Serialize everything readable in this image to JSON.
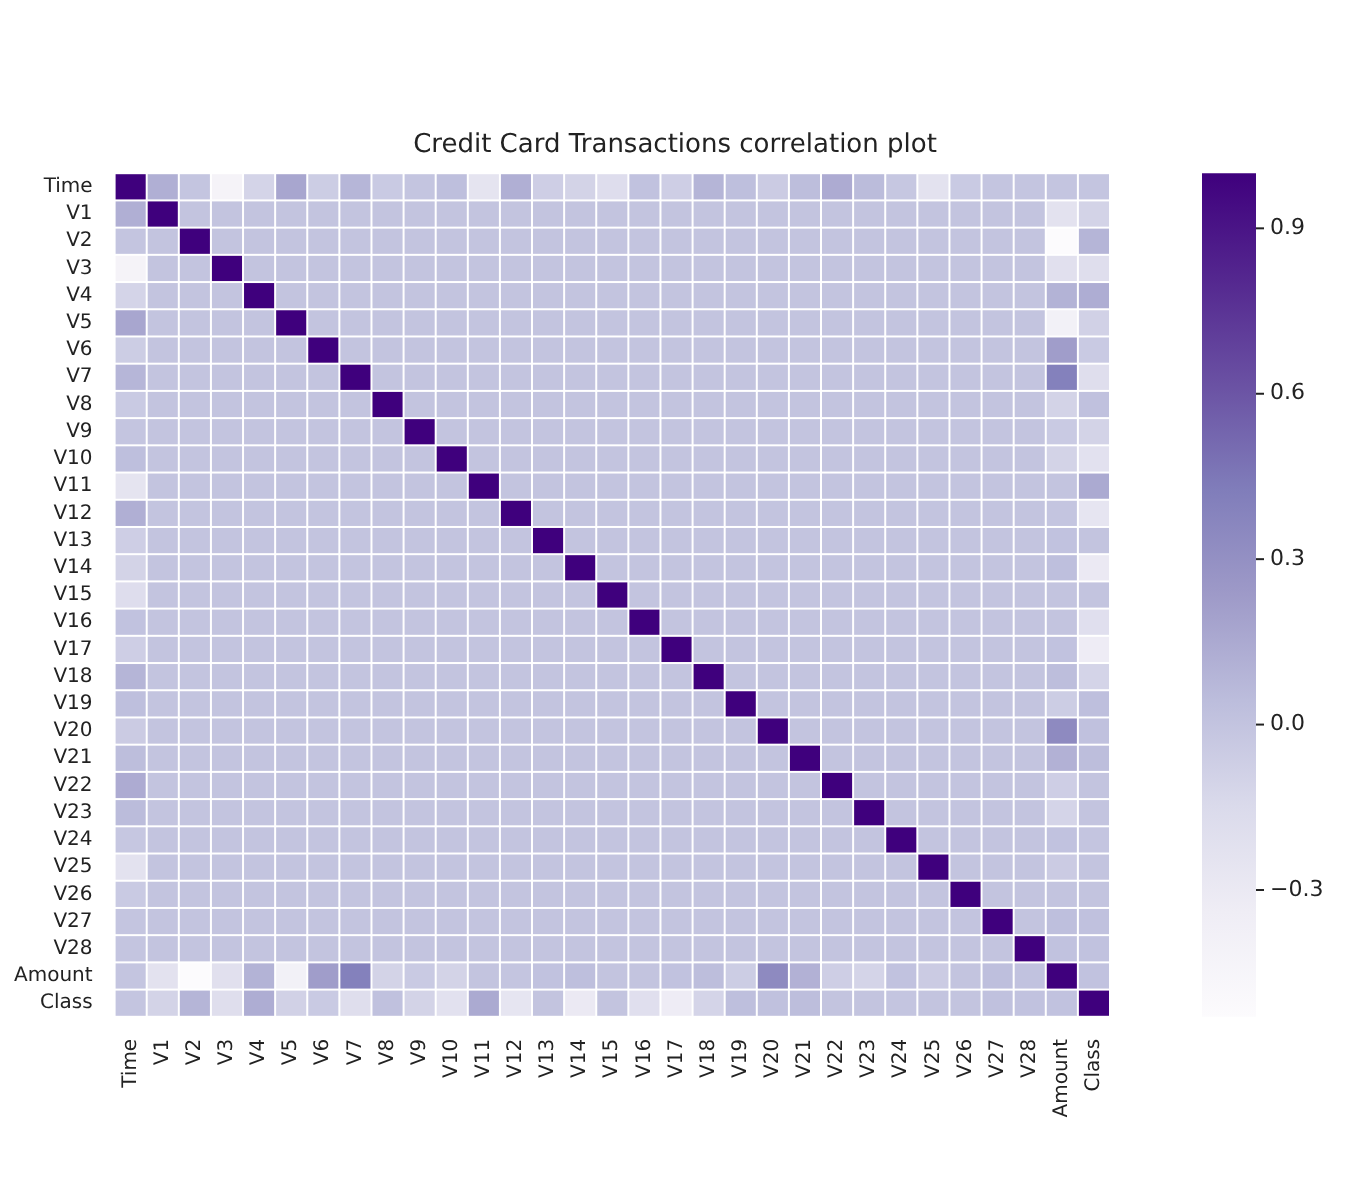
{
  "chart_data": {
    "type": "heatmap",
    "title": "Credit Card Transactions correlation plot",
    "categories": [
      "Time",
      "V1",
      "V2",
      "V3",
      "V4",
      "V5",
      "V6",
      "V7",
      "V8",
      "V9",
      "V10",
      "V11",
      "V12",
      "V13",
      "V14",
      "V15",
      "V16",
      "V17",
      "V18",
      "V19",
      "V20",
      "V21",
      "V22",
      "V23",
      "V24",
      "V25",
      "V26",
      "V27",
      "V28",
      "Amount",
      "Class"
    ],
    "y_categories": [
      "Time",
      "V1",
      "V2",
      "V3",
      "V4",
      "V5",
      "V6",
      "V7",
      "V8",
      "V9",
      "V10",
      "V11",
      "V12",
      "V13",
      "V14",
      "V15",
      "V16",
      "V17",
      "V18",
      "V19",
      "V20",
      "V21",
      "V22",
      "V23",
      "V24",
      "V25",
      "V26",
      "V27",
      "V28",
      "Amount",
      "Class"
    ],
    "cells": [
      [
        1,
        0.12,
        -0.01,
        -0.42,
        -0.11,
        0.17,
        -0.06,
        0.08,
        -0.04,
        -0.01,
        0.03,
        -0.25,
        0.12,
        -0.07,
        -0.1,
        -0.18,
        0.01,
        -0.07,
        0.09,
        0.03,
        -0.05,
        0.04,
        0.14,
        0.05,
        -0.02,
        -0.23,
        -0.04,
        -0.01,
        -0.01,
        -0.01,
        -0.01
      ],
      [
        0.12,
        1,
        0,
        0,
        0,
        0,
        0,
        0,
        0,
        0,
        0,
        0,
        0,
        0,
        0,
        0,
        0,
        0,
        0,
        0,
        0,
        0,
        0,
        0,
        0,
        0,
        0,
        0,
        0,
        -0.23,
        -0.1
      ],
      [
        -0.01,
        0,
        1,
        0,
        0,
        0,
        0,
        0,
        0,
        0,
        0,
        0,
        0,
        0,
        0,
        0,
        0,
        0,
        0,
        0,
        0,
        0,
        0,
        0,
        0,
        0,
        0,
        0,
        0,
        -0.53,
        0.09
      ],
      [
        -0.42,
        0,
        0,
        1,
        0,
        0,
        0,
        0,
        0,
        0,
        0,
        0,
        0,
        0,
        0,
        0,
        0,
        0,
        0,
        0,
        0,
        0,
        0,
        0,
        0,
        0,
        0,
        0,
        0,
        -0.21,
        -0.19
      ],
      [
        -0.11,
        0,
        0,
        0,
        1,
        0,
        0,
        0,
        0,
        0,
        0,
        0,
        0,
        0,
        0,
        0,
        0,
        0,
        0,
        0,
        0,
        0,
        0,
        0,
        0,
        0,
        0,
        0,
        0,
        0.1,
        0.13
      ],
      [
        0.17,
        0,
        0,
        0,
        0,
        1,
        0,
        0,
        0,
        0,
        0,
        0,
        0,
        0,
        0,
        0,
        0,
        0,
        0,
        0,
        0,
        0,
        0,
        0,
        0,
        0,
        0,
        0,
        0,
        -0.39,
        -0.09
      ],
      [
        -0.06,
        0,
        0,
        0,
        0,
        0,
        1,
        0,
        0,
        0,
        0,
        0,
        0,
        0,
        0,
        0,
        0,
        0,
        0,
        0,
        0,
        0,
        0,
        0,
        0,
        0,
        0,
        0,
        0,
        0.22,
        -0.04
      ],
      [
        0.08,
        0,
        0,
        0,
        0,
        0,
        0,
        1,
        0,
        0,
        0,
        0,
        0,
        0,
        0,
        0,
        0,
        0,
        0,
        0,
        0,
        0,
        0,
        0,
        0,
        0,
        0,
        0,
        0,
        0.4,
        -0.19
      ],
      [
        -0.04,
        0,
        0,
        0,
        0,
        0,
        0,
        0,
        1,
        0,
        0,
        0,
        0,
        0,
        0,
        0,
        0,
        0,
        0,
        0,
        0,
        0,
        0,
        0,
        0,
        0,
        0,
        0,
        0,
        -0.1,
        0.02
      ],
      [
        -0.01,
        0,
        0,
        0,
        0,
        0,
        0,
        0,
        0,
        1,
        0,
        0,
        0,
        0,
        0,
        0,
        0,
        0,
        0,
        0,
        0,
        0,
        0,
        0,
        0,
        0,
        0,
        0,
        0,
        -0.04,
        -0.1
      ],
      [
        0.03,
        0,
        0,
        0,
        0,
        0,
        0,
        0,
        0,
        0,
        1,
        0,
        0,
        0,
        0,
        0,
        0,
        0,
        0,
        0,
        0,
        0,
        0,
        0,
        0,
        0,
        0,
        0,
        0,
        -0.1,
        -0.22
      ],
      [
        -0.25,
        0,
        0,
        0,
        0,
        0,
        0,
        0,
        0,
        0,
        0,
        1,
        0,
        0,
        0,
        0,
        0,
        0,
        0,
        0,
        0,
        0,
        0,
        0,
        0,
        0,
        0,
        0,
        0,
        0,
        0.15
      ],
      [
        0.12,
        0,
        0,
        0,
        0,
        0,
        0,
        0,
        0,
        0,
        0,
        0,
        1,
        0,
        0,
        0,
        0,
        0,
        0,
        0,
        0,
        0,
        0,
        0,
        0,
        0,
        0,
        0,
        0,
        -0.01,
        -0.26
      ],
      [
        -0.07,
        0,
        0,
        0,
        0,
        0,
        0,
        0,
        0,
        0,
        0,
        0,
        0,
        1,
        0,
        0,
        0,
        0,
        0,
        0,
        0,
        0,
        0,
        0,
        0,
        0,
        0,
        0,
        0,
        0.01,
        0
      ],
      [
        -0.1,
        0,
        0,
        0,
        0,
        0,
        0,
        0,
        0,
        0,
        0,
        0,
        0,
        0,
        1,
        0,
        0,
        0,
        0,
        0,
        0,
        0,
        0,
        0,
        0,
        0,
        0,
        0,
        0,
        0.03,
        -0.3
      ],
      [
        -0.18,
        0,
        0,
        0,
        0,
        0,
        0,
        0,
        0,
        0,
        0,
        0,
        0,
        0,
        0,
        1,
        0,
        0,
        0,
        0,
        0,
        0,
        0,
        0,
        0,
        0,
        0,
        0,
        0,
        0,
        0
      ],
      [
        0.01,
        0,
        0,
        0,
        0,
        0,
        0,
        0,
        0,
        0,
        0,
        0,
        0,
        0,
        0,
        0,
        1,
        0,
        0,
        0,
        0,
        0,
        0,
        0,
        0,
        0,
        0,
        0,
        0,
        0,
        -0.2
      ],
      [
        -0.07,
        0,
        0,
        0,
        0,
        0,
        0,
        0,
        0,
        0,
        0,
        0,
        0,
        0,
        0,
        0,
        0,
        1,
        0,
        0,
        0,
        0,
        0,
        0,
        0,
        0,
        0,
        0,
        0,
        0.01,
        -0.33
      ],
      [
        0.09,
        0,
        0,
        0,
        0,
        0,
        0,
        0,
        0,
        0,
        0,
        0,
        0,
        0,
        0,
        0,
        0,
        0,
        1,
        0,
        0,
        0,
        0,
        0,
        0,
        0,
        0,
        0,
        0,
        0.04,
        -0.11
      ],
      [
        0.03,
        0,
        0,
        0,
        0,
        0,
        0,
        0,
        0,
        0,
        0,
        0,
        0,
        0,
        0,
        0,
        0,
        0,
        0,
        1,
        0,
        0,
        0,
        0,
        0,
        0,
        0,
        0,
        0,
        -0.06,
        0.03
      ],
      [
        -0.05,
        0,
        0,
        0,
        0,
        0,
        0,
        0,
        0,
        0,
        0,
        0,
        0,
        0,
        0,
        0,
        0,
        0,
        0,
        0,
        1,
        0,
        0,
        0,
        0,
        0,
        0,
        0,
        0,
        0.34,
        0.02
      ],
      [
        0.04,
        0,
        0,
        0,
        0,
        0,
        0,
        0,
        0,
        0,
        0,
        0,
        0,
        0,
        0,
        0,
        0,
        0,
        0,
        0,
        0,
        1,
        0,
        0,
        0,
        0,
        0,
        0,
        0,
        0.11,
        0.04
      ],
      [
        0.14,
        0,
        0,
        0,
        0,
        0,
        0,
        0,
        0,
        0,
        0,
        0,
        0,
        0,
        0,
        0,
        0,
        0,
        0,
        0,
        0,
        0,
        1,
        0,
        0,
        0,
        0,
        0,
        0,
        -0.07,
        0
      ],
      [
        0.05,
        0,
        0,
        0,
        0,
        0,
        0,
        0,
        0,
        0,
        0,
        0,
        0,
        0,
        0,
        0,
        0,
        0,
        0,
        0,
        0,
        0,
        0,
        1,
        0,
        0,
        0,
        0,
        0,
        -0.11,
        0
      ],
      [
        -0.02,
        0,
        0,
        0,
        0,
        0,
        0,
        0,
        0,
        0,
        0,
        0,
        0,
        0,
        0,
        0,
        0,
        0,
        0,
        0,
        0,
        0,
        0,
        0,
        1,
        0,
        0,
        0,
        0,
        0.01,
        -0.01
      ],
      [
        -0.23,
        0,
        0,
        0,
        0,
        0,
        0,
        0,
        0,
        0,
        0,
        0,
        0,
        0,
        0,
        0,
        0,
        0,
        0,
        0,
        0,
        0,
        0,
        0,
        0,
        1,
        0,
        0,
        0,
        -0.05,
        0
      ],
      [
        -0.04,
        0,
        0,
        0,
        0,
        0,
        0,
        0,
        0,
        0,
        0,
        0,
        0,
        0,
        0,
        0,
        0,
        0,
        0,
        0,
        0,
        0,
        0,
        0,
        0,
        0,
        1,
        0,
        0,
        0,
        0
      ],
      [
        -0.01,
        0,
        0,
        0,
        0,
        0,
        0,
        0,
        0,
        0,
        0,
        0,
        0,
        0,
        0,
        0,
        0,
        0,
        0,
        0,
        0,
        0,
        0,
        0,
        0,
        0,
        0,
        1,
        0,
        0.03,
        0.02
      ],
      [
        -0.01,
        0,
        0,
        0,
        0,
        0,
        0,
        0,
        0,
        0,
        0,
        0,
        0,
        0,
        0,
        0,
        0,
        0,
        0,
        0,
        0,
        0,
        0,
        0,
        0,
        0,
        0,
        0,
        1,
        0.01,
        0.01
      ],
      [
        -0.01,
        -0.23,
        -0.53,
        -0.21,
        0.1,
        -0.39,
        0.22,
        0.4,
        -0.1,
        -0.04,
        -0.1,
        0,
        -0.01,
        0.01,
        0.03,
        0,
        0,
        0.01,
        0.04,
        -0.06,
        0.34,
        0.11,
        -0.07,
        -0.11,
        0.01,
        -0.05,
        0,
        0.03,
        0.01,
        1,
        0.01
      ],
      [
        -0.01,
        -0.1,
        0.09,
        -0.19,
        0.13,
        -0.09,
        -0.04,
        -0.19,
        0.02,
        -0.1,
        -0.22,
        0.15,
        -0.26,
        0,
        -0.3,
        0,
        -0.2,
        -0.33,
        -0.11,
        0.03,
        0.02,
        0.04,
        0,
        0,
        -0.01,
        0,
        0,
        0.02,
        0.01,
        0.01,
        1
      ]
    ],
    "clim": [
      -0.53,
      1
    ],
    "cticks": [
      {
        "value": -0.3,
        "label": "−0.3"
      },
      {
        "value": 0,
        "label": "0.0"
      },
      0.3,
      0.6,
      0.9
    ]
  }
}
